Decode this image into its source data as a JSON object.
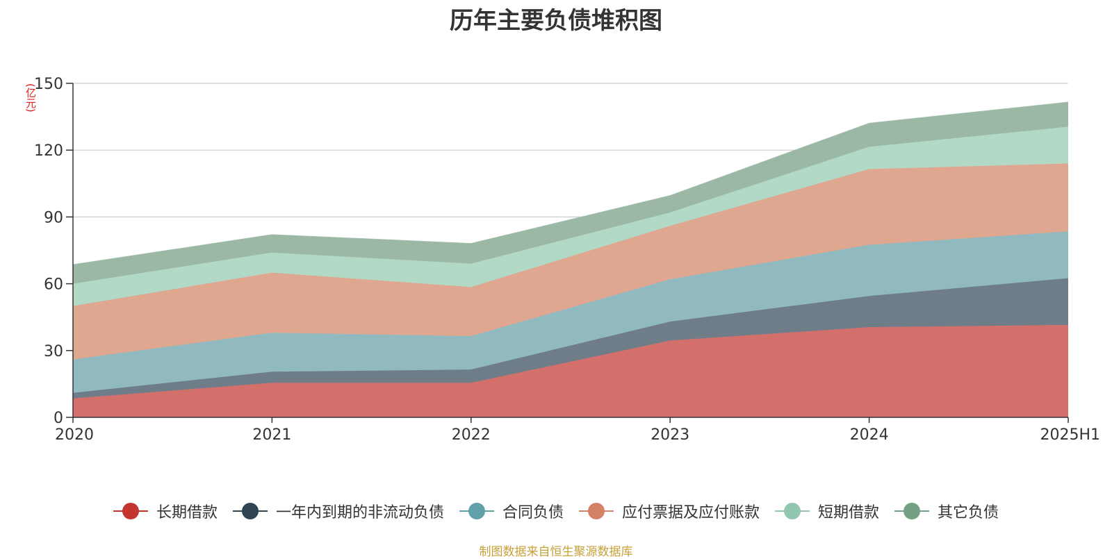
{
  "chart_data": {
    "type": "area",
    "title": "历年主要负债堆积图",
    "unit_label": "(亿元)",
    "stacked": true,
    "categories": [
      "2020",
      "2021",
      "2022",
      "2023",
      "2024",
      "2025H1"
    ],
    "ylim": [
      0,
      150
    ],
    "yticks": [
      "0",
      "30",
      "60",
      "90",
      "120",
      "150"
    ],
    "grid": true,
    "legend_position": "bottom",
    "series": [
      {
        "name": "长期借款",
        "color": "#c23531",
        "fill": "#d4706c",
        "values": [
          8.5,
          15.5,
          15.5,
          34.5,
          40.5,
          41.5
        ]
      },
      {
        "name": "一年内到期的非流动负债",
        "color": "#2f4554",
        "fill": "#6e7d88",
        "values": [
          2.5,
          5.0,
          6.0,
          8.5,
          14.0,
          21.0
        ]
      },
      {
        "name": "合同负债",
        "color": "#61a0a8",
        "fill": "#90bac0",
        "values": [
          15.0,
          17.5,
          15.0,
          19.0,
          23.0,
          21.0
        ]
      },
      {
        "name": "应付票据及应付账款",
        "color": "#d48265",
        "fill": "#dfa690",
        "values": [
          24.0,
          27.0,
          22.0,
          24.0,
          34.0,
          30.5
        ]
      },
      {
        "name": "短期借款",
        "color": "#91c7ae",
        "fill": "#b2d8c6",
        "values": [
          10.0,
          9.0,
          10.5,
          6.0,
          10.0,
          16.5
        ]
      },
      {
        "name": "其它负债",
        "color": "#749f83",
        "fill": "#9bb8a5",
        "values": [
          8.5,
          8.0,
          9.0,
          7.5,
          10.5,
          11.0
        ]
      }
    ]
  },
  "source_text": "制图数据来自恒生聚源数据库"
}
